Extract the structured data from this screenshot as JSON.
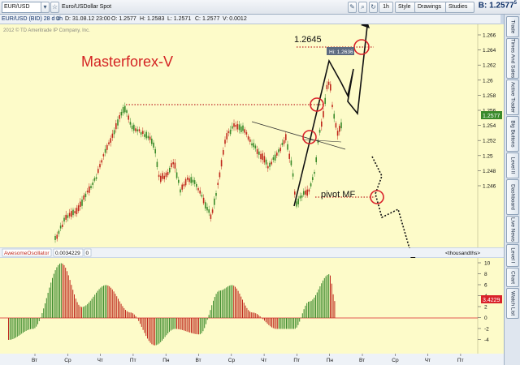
{
  "toolbar": {
    "symbol": "EUR/USD",
    "instrument": "Euro/USDollar Spot",
    "interval": "1h",
    "style_label": "Style",
    "drawings_label": "Drawings",
    "studies_label": "Studies",
    "bid_label": "B: 1.2577",
    "bid_suffix": "5"
  },
  "infobar": {
    "title": "EUR/USD (BID) 28 d 1h",
    "date": "D: 31.08.12 23:00",
    "open": "O: 1.2577",
    "high": "H: 1.2583",
    "low": "L: 1.2571",
    "close": "C: 1.2577",
    "volume": "V: 0.0012"
  },
  "copyright": "2012 © TD Ameritrade IP Company, Inc.",
  "annotations": {
    "brand": "Masterforex-V",
    "target_price": "1.2645",
    "high_badge": "Hi: 1.2636",
    "pivot": "pivot MF"
  },
  "price_axis": {
    "ticks": [
      "1.266",
      "1.264",
      "1.262",
      "1.26",
      "1.258",
      "1.256",
      "1.254",
      "1.252",
      "1.25",
      "1.248",
      "1.246"
    ],
    "current": "1.2577"
  },
  "oscillator": {
    "name": "AwesomeOscillator",
    "value": "0.0034229",
    "param": "0",
    "units_label": "<thousandths>",
    "ticks": [
      "10",
      "8",
      "6",
      "4",
      "2",
      "0",
      "-2",
      "-4"
    ],
    "current": "3.4229"
  },
  "time_axis": [
    "Вт",
    "Ср",
    "Чт",
    "Пт",
    "Пн",
    "Вт",
    "Ср",
    "Чт",
    "Пт",
    "Пн",
    "Вт",
    "Ср",
    "Чт",
    "Пт"
  ],
  "side_tabs": [
    "Trade",
    "Times And Sales",
    "Active Trader",
    "Big Buttons",
    "Level II",
    "Dashboard",
    "Live News",
    "Level I",
    "Chart",
    "Watch List"
  ],
  "colors": {
    "chart_bg": "#fdfbc9",
    "up_candle": "#3a8a2a",
    "down_candle": "#c0281c",
    "annotation_red": "#d9222a",
    "brand_red": "#d42323",
    "accent_dark": "#0c2e66"
  }
}
